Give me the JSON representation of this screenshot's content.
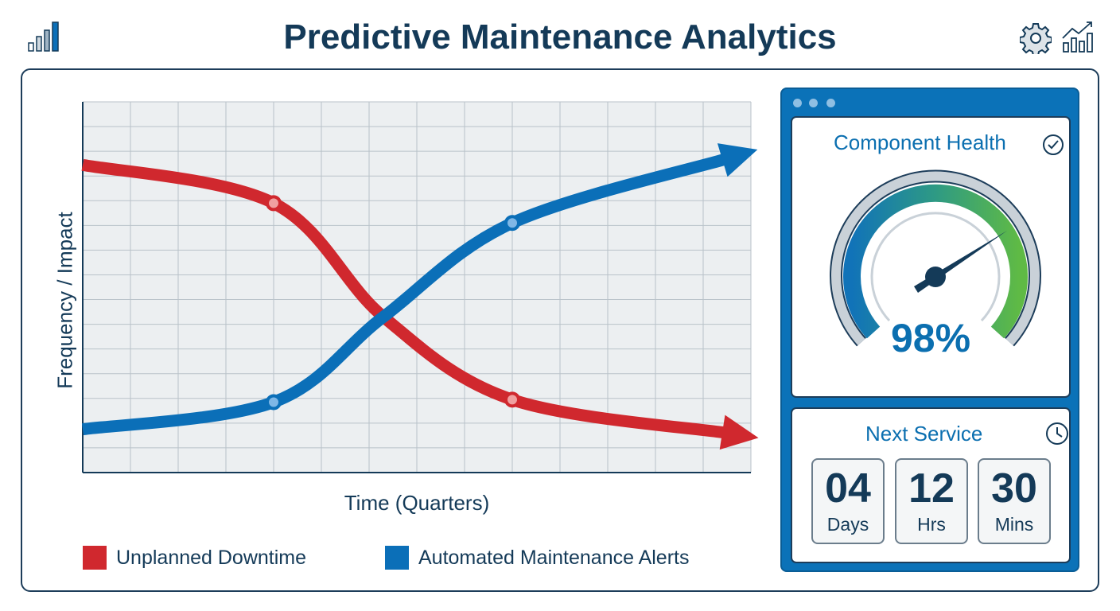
{
  "header": {
    "title": "Predictive Maintenance Analytics",
    "icons": [
      "bar-chart-icon",
      "gear-icon",
      "trend-chart-icon"
    ]
  },
  "chart_data": {
    "type": "line",
    "title": "",
    "xlabel": "Time (Quarters)",
    "ylabel": "Frequency / Impact",
    "xlim": [
      0,
      14
    ],
    "ylim": [
      0,
      15
    ],
    "grid": true,
    "legend": "bottom",
    "series": [
      {
        "name": "Unplanned Downtime",
        "color": "#d0282e",
        "x": [
          0,
          4,
          6.3,
          9,
          13.5
        ],
        "y": [
          12.45,
          10.9,
          6.3,
          2.95,
          1.6
        ],
        "markers": [
          1,
          3
        ]
      },
      {
        "name": "Automated Maintenance Alerts",
        "color": "#0b6fb8",
        "x": [
          0,
          4,
          6.3,
          9,
          13.5
        ],
        "y": [
          1.75,
          2.85,
          6.3,
          10.1,
          12.7
        ],
        "markers": [
          1,
          3
        ]
      }
    ]
  },
  "health": {
    "title": "Component Health",
    "value_label": "98%",
    "value": 98
  },
  "service": {
    "title": "Next Service",
    "items": [
      {
        "num": "04",
        "unit": "Days"
      },
      {
        "num": "12",
        "unit": "Hrs"
      },
      {
        "num": "30",
        "unit": "Mins"
      }
    ]
  }
}
